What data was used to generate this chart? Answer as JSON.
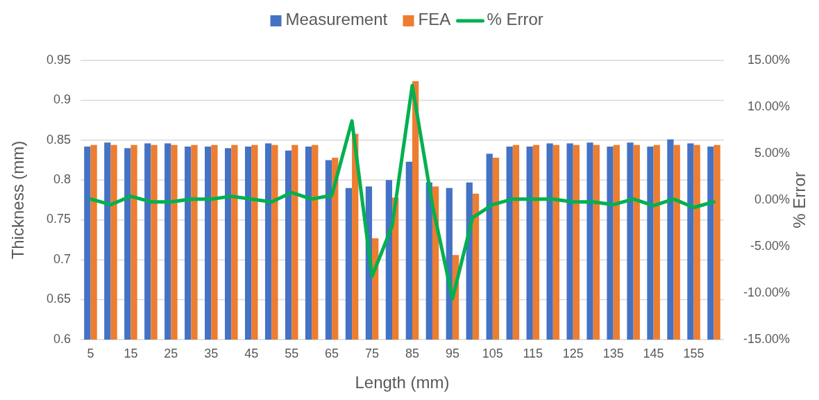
{
  "chart_data": {
    "type": "bar",
    "xlabel": "Length (mm)",
    "ylabel": "Thickness (mm)",
    "y2label": "% Error",
    "categories": [
      "5",
      null,
      "15",
      null,
      "25",
      null,
      "35",
      null,
      "45",
      null,
      "55",
      null,
      "65",
      null,
      "75",
      null,
      "85",
      null,
      "95",
      null,
      "105",
      null,
      "115",
      null,
      "125",
      null,
      "135",
      null,
      "145",
      null,
      "155",
      null
    ],
    "series": [
      {
        "name": "Measurement",
        "color": "#4472c4",
        "values": [
          0.842,
          0.847,
          0.84,
          0.846,
          0.846,
          0.842,
          0.842,
          0.84,
          0.842,
          0.846,
          0.837,
          0.842,
          0.825,
          0.79,
          0.792,
          0.8,
          0.823,
          0.797,
          0.79,
          0.797,
          0.833,
          0.842,
          0.842,
          0.846,
          0.846,
          0.847,
          0.842,
          0.847,
          0.842,
          0.851,
          0.846,
          0.842
        ]
      },
      {
        "name": "FEA",
        "color": "#ed7d31",
        "values": [
          0.844,
          0.844,
          0.844,
          0.844,
          0.844,
          0.844,
          0.844,
          0.844,
          0.844,
          0.844,
          0.844,
          0.844,
          0.828,
          0.858,
          0.727,
          0.778,
          0.924,
          0.792,
          0.706,
          0.783,
          0.828,
          0.844,
          0.844,
          0.844,
          0.844,
          0.844,
          0.844,
          0.844,
          0.844,
          0.844,
          0.844,
          0.844
        ]
      },
      {
        "name": "% Error",
        "type": "line",
        "axis": "y2",
        "color": "#00b050",
        "values": [
          0.1,
          -0.5,
          0.4,
          -0.2,
          -0.2,
          0.1,
          0.1,
          0.4,
          0.1,
          -0.2,
          0.8,
          0.1,
          0.5,
          8.5,
          -8.2,
          -2.8,
          12.3,
          -0.5,
          -10.6,
          -1.9,
          -0.5,
          0.1,
          0.1,
          0.1,
          -0.2,
          -0.2,
          -0.5,
          0.1,
          -0.6,
          0.1,
          -0.8,
          -0.2
        ]
      }
    ],
    "ylim": [
      0.6,
      0.95
    ],
    "yticks": [
      0.6,
      0.65,
      0.7,
      0.75,
      0.8,
      0.85,
      0.9,
      0.95
    ],
    "y2lim": [
      -15,
      15
    ],
    "y2ticks": [
      {
        "value": -15,
        "label": "-15.00%"
      },
      {
        "value": -10,
        "label": "-10.00%"
      },
      {
        "value": -5,
        "label": "-5.00%"
      },
      {
        "value": 0,
        "label": "0.00%"
      },
      {
        "value": 5,
        "label": "5.00%"
      },
      {
        "value": 10,
        "label": "10.00%"
      },
      {
        "value": 15,
        "label": "15.00%"
      }
    ],
    "grid": "y",
    "legend": "top"
  }
}
